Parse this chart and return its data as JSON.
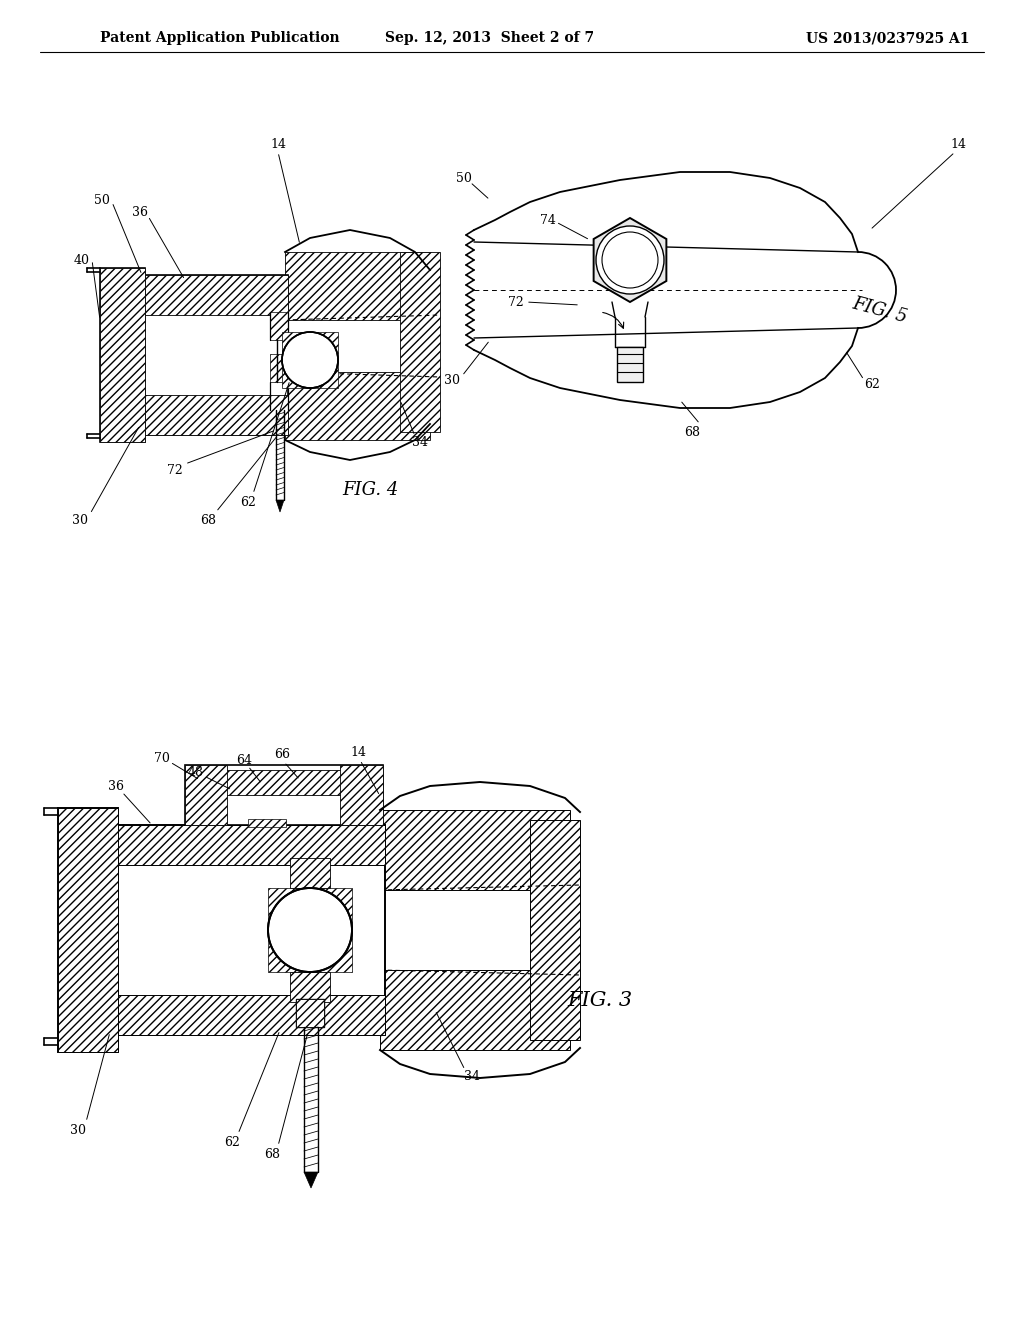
{
  "bg_color": "#ffffff",
  "header_left": "Patent Application Publication",
  "header_mid": "Sep. 12, 2013  Sheet 2 of 7",
  "header_right": "US 2013/0237925 A1",
  "fig4_label": "FIG. 4",
  "fig5_label": "FIG. 5",
  "fig3_label": "FIG. 3",
  "line_color": "#000000",
  "hatch_color": "#000000"
}
